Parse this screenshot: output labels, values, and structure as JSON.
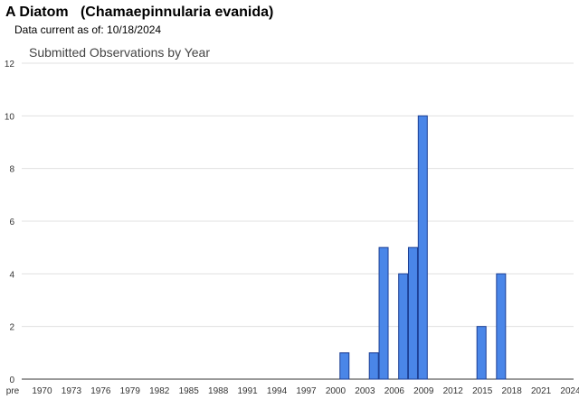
{
  "header": {
    "species_title": "A Diatom   (Chamaepinnularia evanida)",
    "data_current": "Data current as of: 10/18/2024"
  },
  "colors": {
    "bar_fill": "#4a86e8",
    "bar_stroke": "#1c3f94",
    "grid": "#e0e0e0",
    "axis": "#333333"
  },
  "chart_data": {
    "type": "bar",
    "title": "Submitted Observations by Year",
    "xlabel": "",
    "ylabel": "",
    "ylim": [
      0,
      12
    ],
    "yticks": [
      0,
      2,
      4,
      6,
      8,
      10,
      12
    ],
    "grid": true,
    "x_tick_labels": [
      "pre",
      "1970",
      "1973",
      "1976",
      "1979",
      "1982",
      "1985",
      "1988",
      "1991",
      "1994",
      "1997",
      "2000",
      "2003",
      "2006",
      "2009",
      "2012",
      "2015",
      "2018",
      "2021",
      "2024"
    ],
    "categories": [
      "pre",
      "1970",
      "1971",
      "1972",
      "1973",
      "1974",
      "1975",
      "1976",
      "1977",
      "1978",
      "1979",
      "1980",
      "1981",
      "1982",
      "1983",
      "1984",
      "1985",
      "1986",
      "1987",
      "1988",
      "1989",
      "1990",
      "1991",
      "1992",
      "1993",
      "1994",
      "1995",
      "1996",
      "1997",
      "1998",
      "1999",
      "2000",
      "2001",
      "2002",
      "2003",
      "2004",
      "2005",
      "2006",
      "2007",
      "2008",
      "2009",
      "2010",
      "2011",
      "2012",
      "2013",
      "2014",
      "2015",
      "2016",
      "2017",
      "2018",
      "2019",
      "2020",
      "2021",
      "2022",
      "2023",
      "2024"
    ],
    "values": [
      0,
      0,
      0,
      0,
      0,
      0,
      0,
      0,
      0,
      0,
      0,
      0,
      0,
      0,
      0,
      0,
      0,
      0,
      0,
      0,
      0,
      0,
      0,
      0,
      0,
      0,
      0,
      0,
      0,
      0,
      0,
      0,
      0,
      1,
      0,
      0,
      1,
      5,
      0,
      4,
      5,
      10,
      0,
      0,
      0,
      0,
      0,
      2,
      0,
      4,
      0,
      0,
      0,
      0,
      0,
      0
    ]
  }
}
